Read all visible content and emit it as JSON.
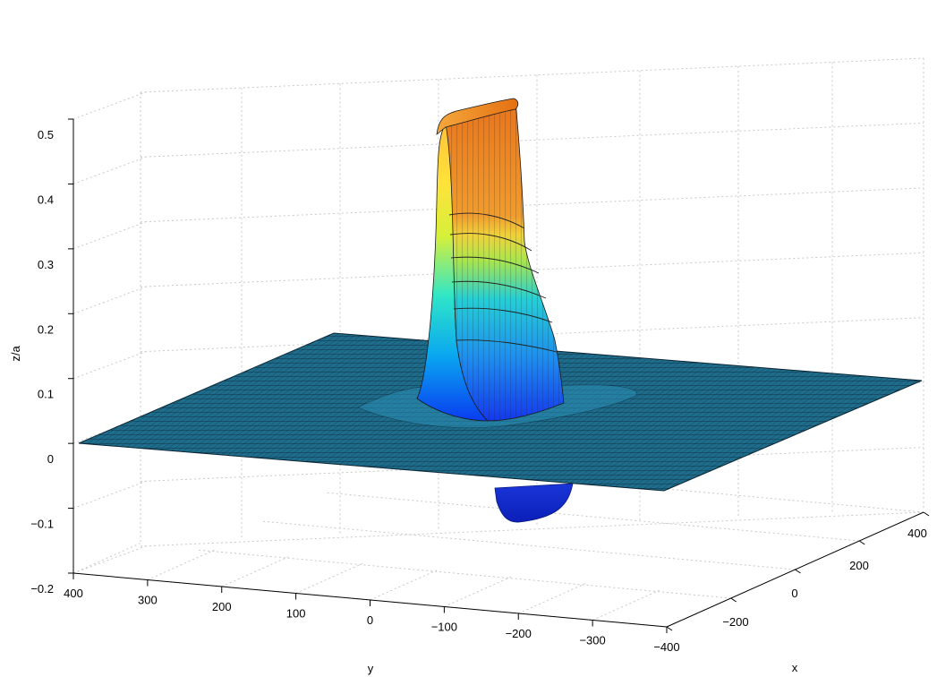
{
  "chart_data": {
    "type": "surface3d",
    "title": "",
    "zlabel": "z/a",
    "xlabel": "x",
    "ylabel": "y",
    "zlim": [
      -0.2,
      0.5
    ],
    "xlim": [
      -400,
      400
    ],
    "ylim": [
      -400,
      400
    ],
    "z_ticks": [
      "0.5",
      "0.4",
      "0.3",
      "0.2",
      "0.1",
      "0",
      "−0.1",
      "−0.2"
    ],
    "y_ticks": [
      "400",
      "300",
      "200",
      "100",
      "0",
      "−100",
      "−200",
      "−300",
      "−400"
    ],
    "x_ticks": [
      "400",
      "200",
      "0",
      "−200"
    ],
    "grid": true,
    "colormap": "jet",
    "surface": {
      "baseline_z": 0.0,
      "peak_z": 0.5,
      "trough_z": -0.1,
      "peak_extent_x": [
        -100,
        100
      ],
      "peak_extent_y": [
        -130,
        -30
      ]
    }
  },
  "colors": {
    "plane": "#1f6d8c",
    "mesh": "#0b2533",
    "peak_top": "#f08a1f",
    "trough": "#1230d8"
  }
}
